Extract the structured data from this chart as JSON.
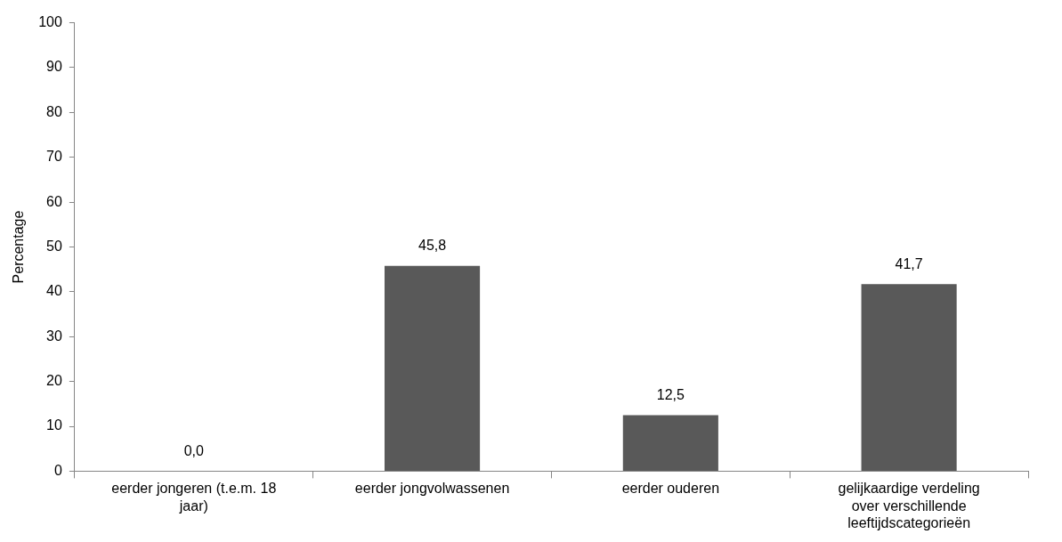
{
  "chart_data": {
    "type": "bar",
    "ylabel": "Percentage",
    "categories": [
      "eerder jongeren (t.e.m. 18 jaar)",
      "eerder jongvolwassenen",
      "eerder ouderen",
      "gelijkaardige verdeling over verschillende leeftijdscategorieën"
    ],
    "values": [
      0,
      45.8,
      12.5,
      41.7
    ],
    "value_labels": [
      "0,0",
      "45,8",
      "12,5",
      "41,7"
    ],
    "color": "#595959",
    "ylim": [
      0,
      100
    ],
    "yticks": [
      0,
      10,
      20,
      30,
      40,
      50,
      60,
      70,
      80,
      90,
      100
    ]
  }
}
